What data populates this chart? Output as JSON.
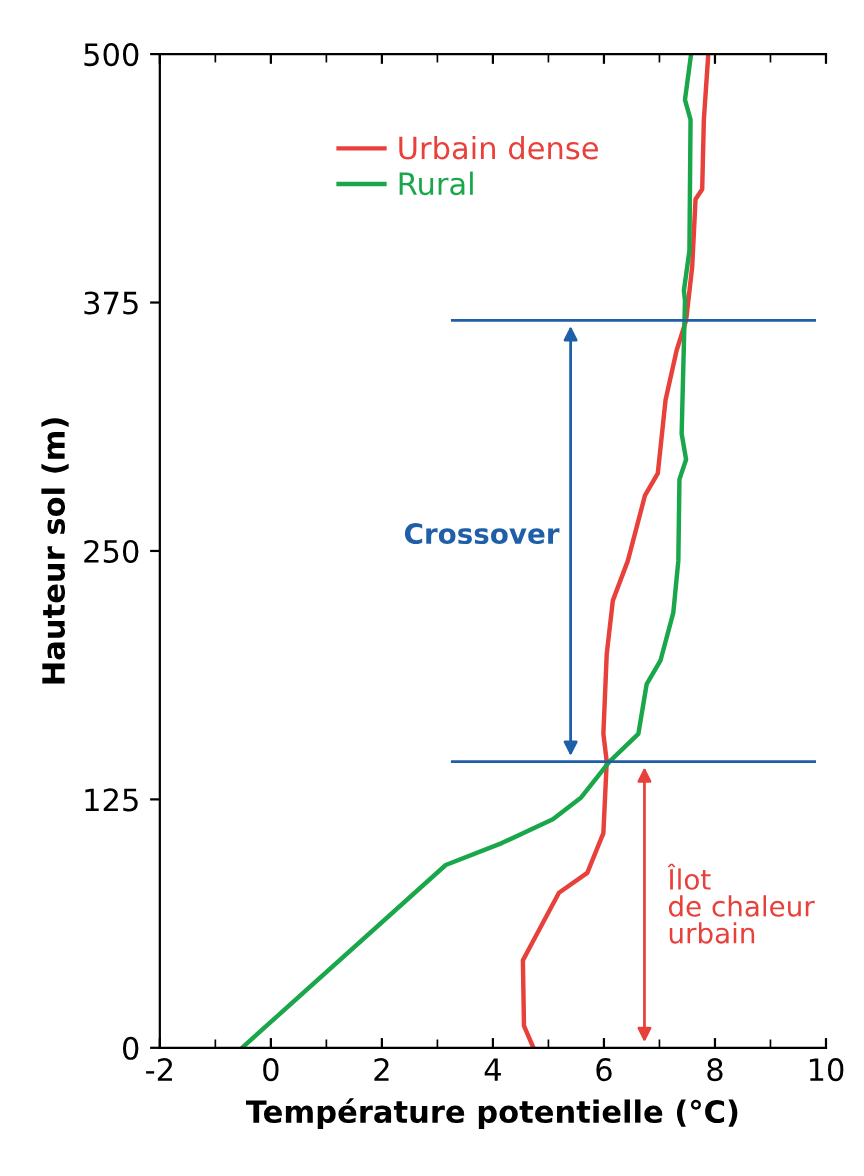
{
  "chart_data": {
    "type": "line",
    "xlabel": "Température potentielle (°C)",
    "ylabel": "Hauteur sol (m)",
    "series": [
      {
        "name": "Urbain dense",
        "color": "#e8403a",
        "x": [
          4.73,
          4.56,
          4.54,
          4.73,
          5.19,
          5.7,
          5.99,
          6.05,
          5.99,
          6.05,
          6.16,
          6.43,
          6.74,
          6.97,
          7.11,
          7.31,
          7.48,
          7.59,
          7.65,
          7.77,
          7.8,
          7.88
        ],
        "values": [
          0,
          11,
          44,
          54,
          78,
          88,
          108,
          144,
          158,
          198,
          225,
          245,
          278,
          289,
          326,
          351,
          366,
          393,
          427,
          432,
          467,
          500
        ]
      },
      {
        "name": "Rural",
        "color": "#1aa64a",
        "x": [
          -0.52,
          3.15,
          4.16,
          5.08,
          5.59,
          6.1,
          6.62,
          6.77,
          7.02,
          7.25,
          7.34,
          7.36,
          7.48,
          7.4,
          7.46,
          7.44,
          7.54,
          7.56,
          7.46,
          7.57
        ],
        "values": [
          0,
          92,
          103,
          115,
          126,
          144,
          158,
          183,
          195,
          219,
          245,
          286,
          296,
          309,
          376,
          381,
          401,
          467,
          477,
          500
        ]
      }
    ],
    "ref_lines": [
      {
        "axis": "y",
        "value": 366,
        "color": "#1f5fa8"
      },
      {
        "axis": "y",
        "value": 144,
        "color": "#1f5fa8"
      }
    ],
    "annotations": [
      "Crossover",
      "Îlot\nde chaleur\nurbain"
    ],
    "xlim": [
      -2,
      10
    ],
    "xticks": [
      -2,
      0,
      2,
      4,
      6,
      8,
      10
    ],
    "ylim": [
      0,
      500
    ],
    "yticks": [
      0,
      125,
      250,
      375,
      500
    ],
    "legend": "top left",
    "grid": false,
    "marker": "none",
    "line_style": "solid"
  }
}
